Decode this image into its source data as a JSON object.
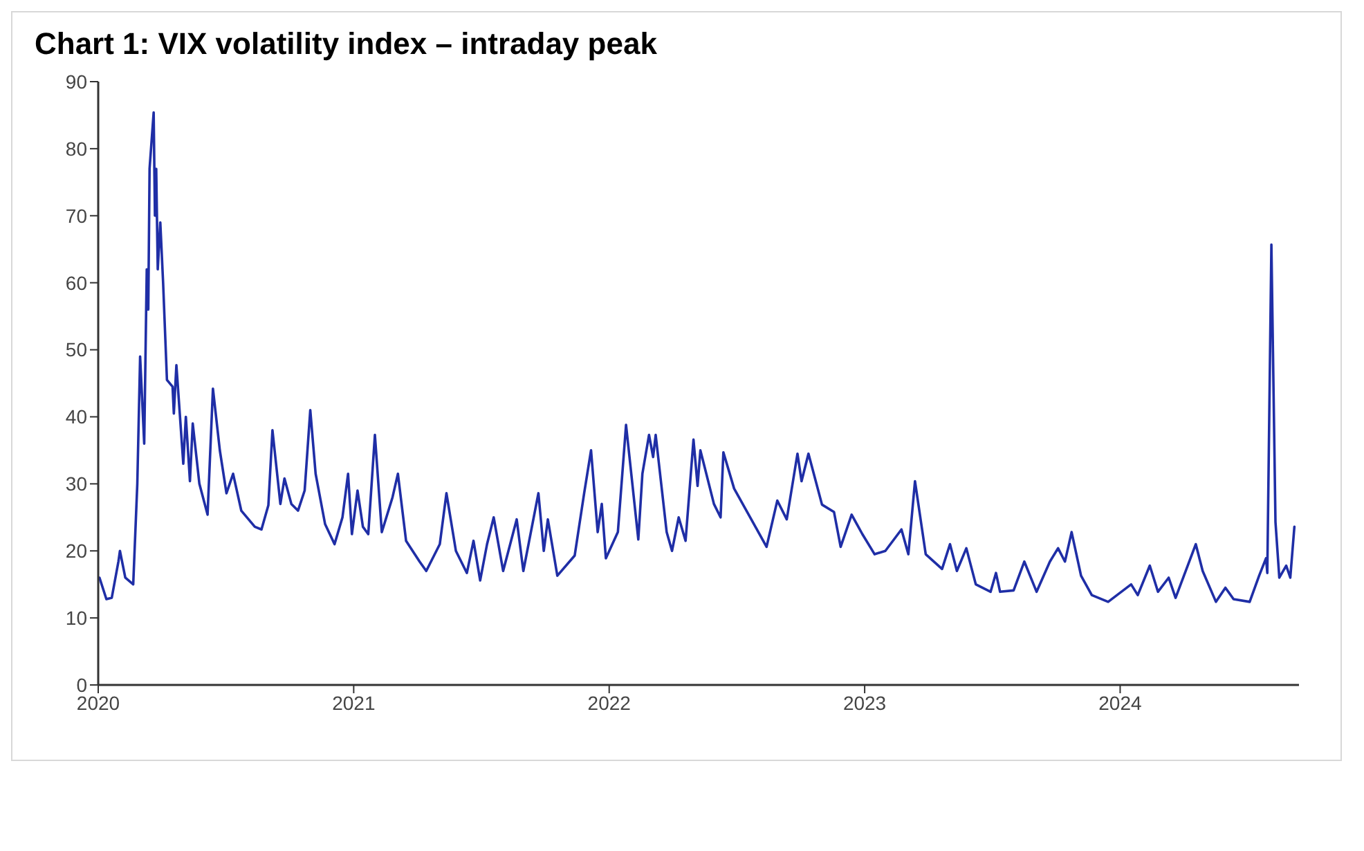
{
  "chart_data": {
    "type": "line",
    "title": "Chart 1: VIX volatility index – intraday peak",
    "xlim": [
      2020,
      2024.7
    ],
    "xticks": [
      2020,
      2021,
      2022,
      2023,
      2024
    ],
    "ylim": [
      0,
      90
    ],
    "yticks": [
      0,
      10,
      20,
      30,
      40,
      50,
      60,
      70,
      80,
      90
    ],
    "grid": false,
    "marker": "none",
    "line_style": "solid",
    "series": [
      {
        "color": "#1f2ea6",
        "x": [
          2020.005,
          2020.032,
          2020.053,
          2020.079,
          2020.085,
          2020.106,
          2020.137,
          2020.153,
          2020.164,
          2020.18,
          2020.19,
          2020.196,
          2020.201,
          2020.217,
          2020.222,
          2020.227,
          2020.233,
          2020.243,
          2020.254,
          2020.269,
          2020.291,
          2020.296,
          2020.306,
          2020.333,
          2020.343,
          2020.359,
          2020.37,
          2020.396,
          2020.428,
          2020.449,
          2020.476,
          2020.502,
          2020.528,
          2020.56,
          2020.613,
          2020.639,
          2020.666,
          2020.682,
          2020.713,
          2020.729,
          2020.756,
          2020.782,
          2020.808,
          2020.83,
          2020.851,
          2020.888,
          2020.925,
          2020.956,
          2020.978,
          2020.993,
          2021.015,
          2021.036,
          2021.057,
          2021.083,
          2021.11,
          2021.152,
          2021.173,
          2021.205,
          2021.258,
          2021.284,
          2021.337,
          2021.363,
          2021.4,
          2021.443,
          2021.469,
          2021.495,
          2021.522,
          2021.548,
          2021.585,
          2021.638,
          2021.664,
          2021.723,
          2021.744,
          2021.76,
          2021.797,
          2021.865,
          2021.902,
          2021.929,
          2021.955,
          2021.971,
          2021.987,
          2022.034,
          2022.066,
          2022.114,
          2022.13,
          2022.156,
          2022.172,
          2022.182,
          2022.225,
          2022.246,
          2022.272,
          2022.299,
          2022.33,
          2022.346,
          2022.357,
          2022.41,
          2022.436,
          2022.447,
          2022.489,
          2022.552,
          2022.616,
          2022.658,
          2022.695,
          2022.737,
          2022.753,
          2022.78,
          2022.833,
          2022.88,
          2022.906,
          2022.949,
          2022.991,
          2023.039,
          2023.081,
          2023.144,
          2023.171,
          2023.197,
          2023.239,
          2023.303,
          2023.334,
          2023.361,
          2023.398,
          2023.435,
          2023.493,
          2023.514,
          2023.53,
          2023.583,
          2023.625,
          2023.673,
          2023.725,
          2023.757,
          2023.784,
          2023.81,
          2023.847,
          2023.889,
          2023.953,
          2024.043,
          2024.069,
          2024.116,
          2024.148,
          2024.19,
          2024.217,
          2024.296,
          2024.323,
          2024.375,
          2024.412,
          2024.444,
          2024.507,
          2024.544,
          2024.571,
          2024.576,
          2024.592,
          2024.608,
          2024.623,
          2024.65,
          2024.666,
          2024.682
        ],
        "values": [
          16,
          12.8,
          13,
          18.4,
          20,
          16,
          15,
          30,
          49,
          36,
          62,
          56,
          77,
          85.4,
          70,
          77,
          62,
          69,
          60,
          45.5,
          44.5,
          40.5,
          47.7,
          33,
          40,
          30.4,
          39,
          30,
          25.4,
          44.2,
          35,
          28.6,
          31.5,
          26,
          23.6,
          23.2,
          26.8,
          38,
          27,
          30.8,
          27,
          26,
          29,
          41,
          31.5,
          24,
          21,
          25,
          31.5,
          22.5,
          29,
          23.6,
          22.5,
          37.3,
          22.8,
          28,
          31.5,
          21.5,
          18.4,
          17,
          21,
          28.6,
          20,
          16.7,
          21.5,
          15.6,
          21,
          25,
          17,
          24.7,
          17,
          28.6,
          20,
          24.7,
          16.3,
          19.3,
          28.6,
          35,
          22.8,
          27,
          18.9,
          22.8,
          38.8,
          21.7,
          31.5,
          37.3,
          34,
          37.3,
          22.8,
          20,
          25,
          21.5,
          36.6,
          29.7,
          35,
          27,
          25,
          34.7,
          29.3,
          25,
          20.6,
          27.5,
          24.7,
          34.5,
          30.4,
          34.5,
          26.9,
          25.8,
          20.6,
          25.4,
          22.5,
          19.5,
          20,
          23.2,
          19.5,
          30.4,
          19.5,
          17.3,
          21,
          17,
          20.4,
          15,
          13.9,
          16.7,
          13.9,
          14.1,
          18.4,
          13.9,
          18.4,
          20.4,
          18.4,
          22.8,
          16.3,
          13.4,
          12.4,
          15,
          13.4,
          17.8,
          13.9,
          16,
          13,
          21,
          17,
          12.4,
          14.5,
          12.8,
          12.4,
          16.3,
          18.9,
          16.7,
          65.7,
          24.3,
          16,
          17.8,
          16,
          23.6
        ]
      }
    ]
  }
}
